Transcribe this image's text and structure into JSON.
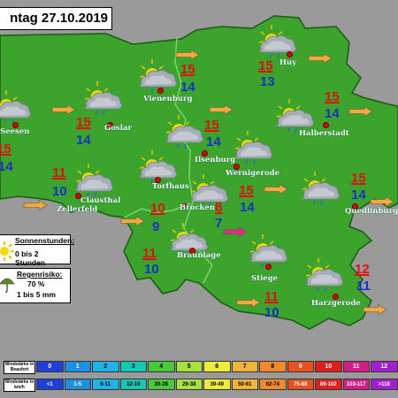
{
  "title": "ntag 27.10.2019",
  "places": [
    {
      "id": "vienenburg",
      "name": "Vienenburg",
      "tmax": "15",
      "tmin": "14"
    },
    {
      "id": "huy",
      "name": "Huy",
      "tmax": "15",
      "tmin": "13"
    },
    {
      "id": "seesen",
      "name": "Seesen",
      "tmax": "15",
      "tmin": "14"
    },
    {
      "id": "goslar",
      "name": "Goslar",
      "tmax": "15",
      "tmin": "14"
    },
    {
      "id": "halberstadt",
      "name": "Halberstadt",
      "tmax": "15",
      "tmin": "14"
    },
    {
      "id": "ilsenburg",
      "name": "Ilsenburg",
      "tmax": "15",
      "tmin": "14"
    },
    {
      "id": "wernigerode",
      "name": "Wernigerode",
      "tmax": "15",
      "tmin": "14"
    },
    {
      "id": "clausthal",
      "name": "Clausthal Zellerfeld",
      "tmax": "11",
      "tmin": "10"
    },
    {
      "id": "torfhaus",
      "name": "Torfhaus",
      "tmax": "10",
      "tmin": "9"
    },
    {
      "id": "brocken",
      "name": "Brocken",
      "tmax": "8",
      "tmin": "7"
    },
    {
      "id": "quedlinburg",
      "name": "Quedlinburg",
      "tmax": "15",
      "tmin": "14"
    },
    {
      "id": "braunlage",
      "name": "Braunlage",
      "tmax": "11",
      "tmin": "10"
    },
    {
      "id": "stiege",
      "name": "Stiege",
      "tmax": "11",
      "tmin": "10"
    },
    {
      "id": "harzgerode",
      "name": "Harzgerode",
      "tmax": "12",
      "tmin": "11"
    }
  ],
  "sunshine": {
    "label": "Sonnenstunden:",
    "value": "0 bis 2 Stunden"
  },
  "rain": {
    "label": "Regenrisiko:",
    "percent": "70 %",
    "amount": "1 bis 5 mm"
  },
  "wind_scale": {
    "beaufort_label": "Windstärke in Beaufort",
    "kmh_label": "Windstärke in km/h",
    "beaufort": [
      "0",
      "1",
      "2",
      "3",
      "4",
      "5",
      "6",
      "7",
      "8",
      "9",
      "10",
      "11",
      "12"
    ],
    "kmh": [
      "<1",
      "1-5",
      "6-11",
      "12-19",
      "20-28",
      "29-38",
      "39-49",
      "50-61",
      "62-74",
      "75-88",
      "89-102",
      "103-117",
      ">118"
    ],
    "colors": [
      "#1f3fd8",
      "#1f8fe0",
      "#1fb4e8",
      "#14c8b4",
      "#4ac83c",
      "#a8e040",
      "#f0ec3a",
      "#f0b43a",
      "#f08a2a",
      "#e8501e",
      "#e01e1e",
      "#d01e8a",
      "#a21ed0"
    ]
  },
  "colors": {
    "land": "#3ca42c",
    "background": "#9a9a9a",
    "tmax": "#dd1111",
    "tmin": "#1431c8",
    "arrow_calm": "#f4a93a",
    "arrow_strong": "#e0307a"
  }
}
